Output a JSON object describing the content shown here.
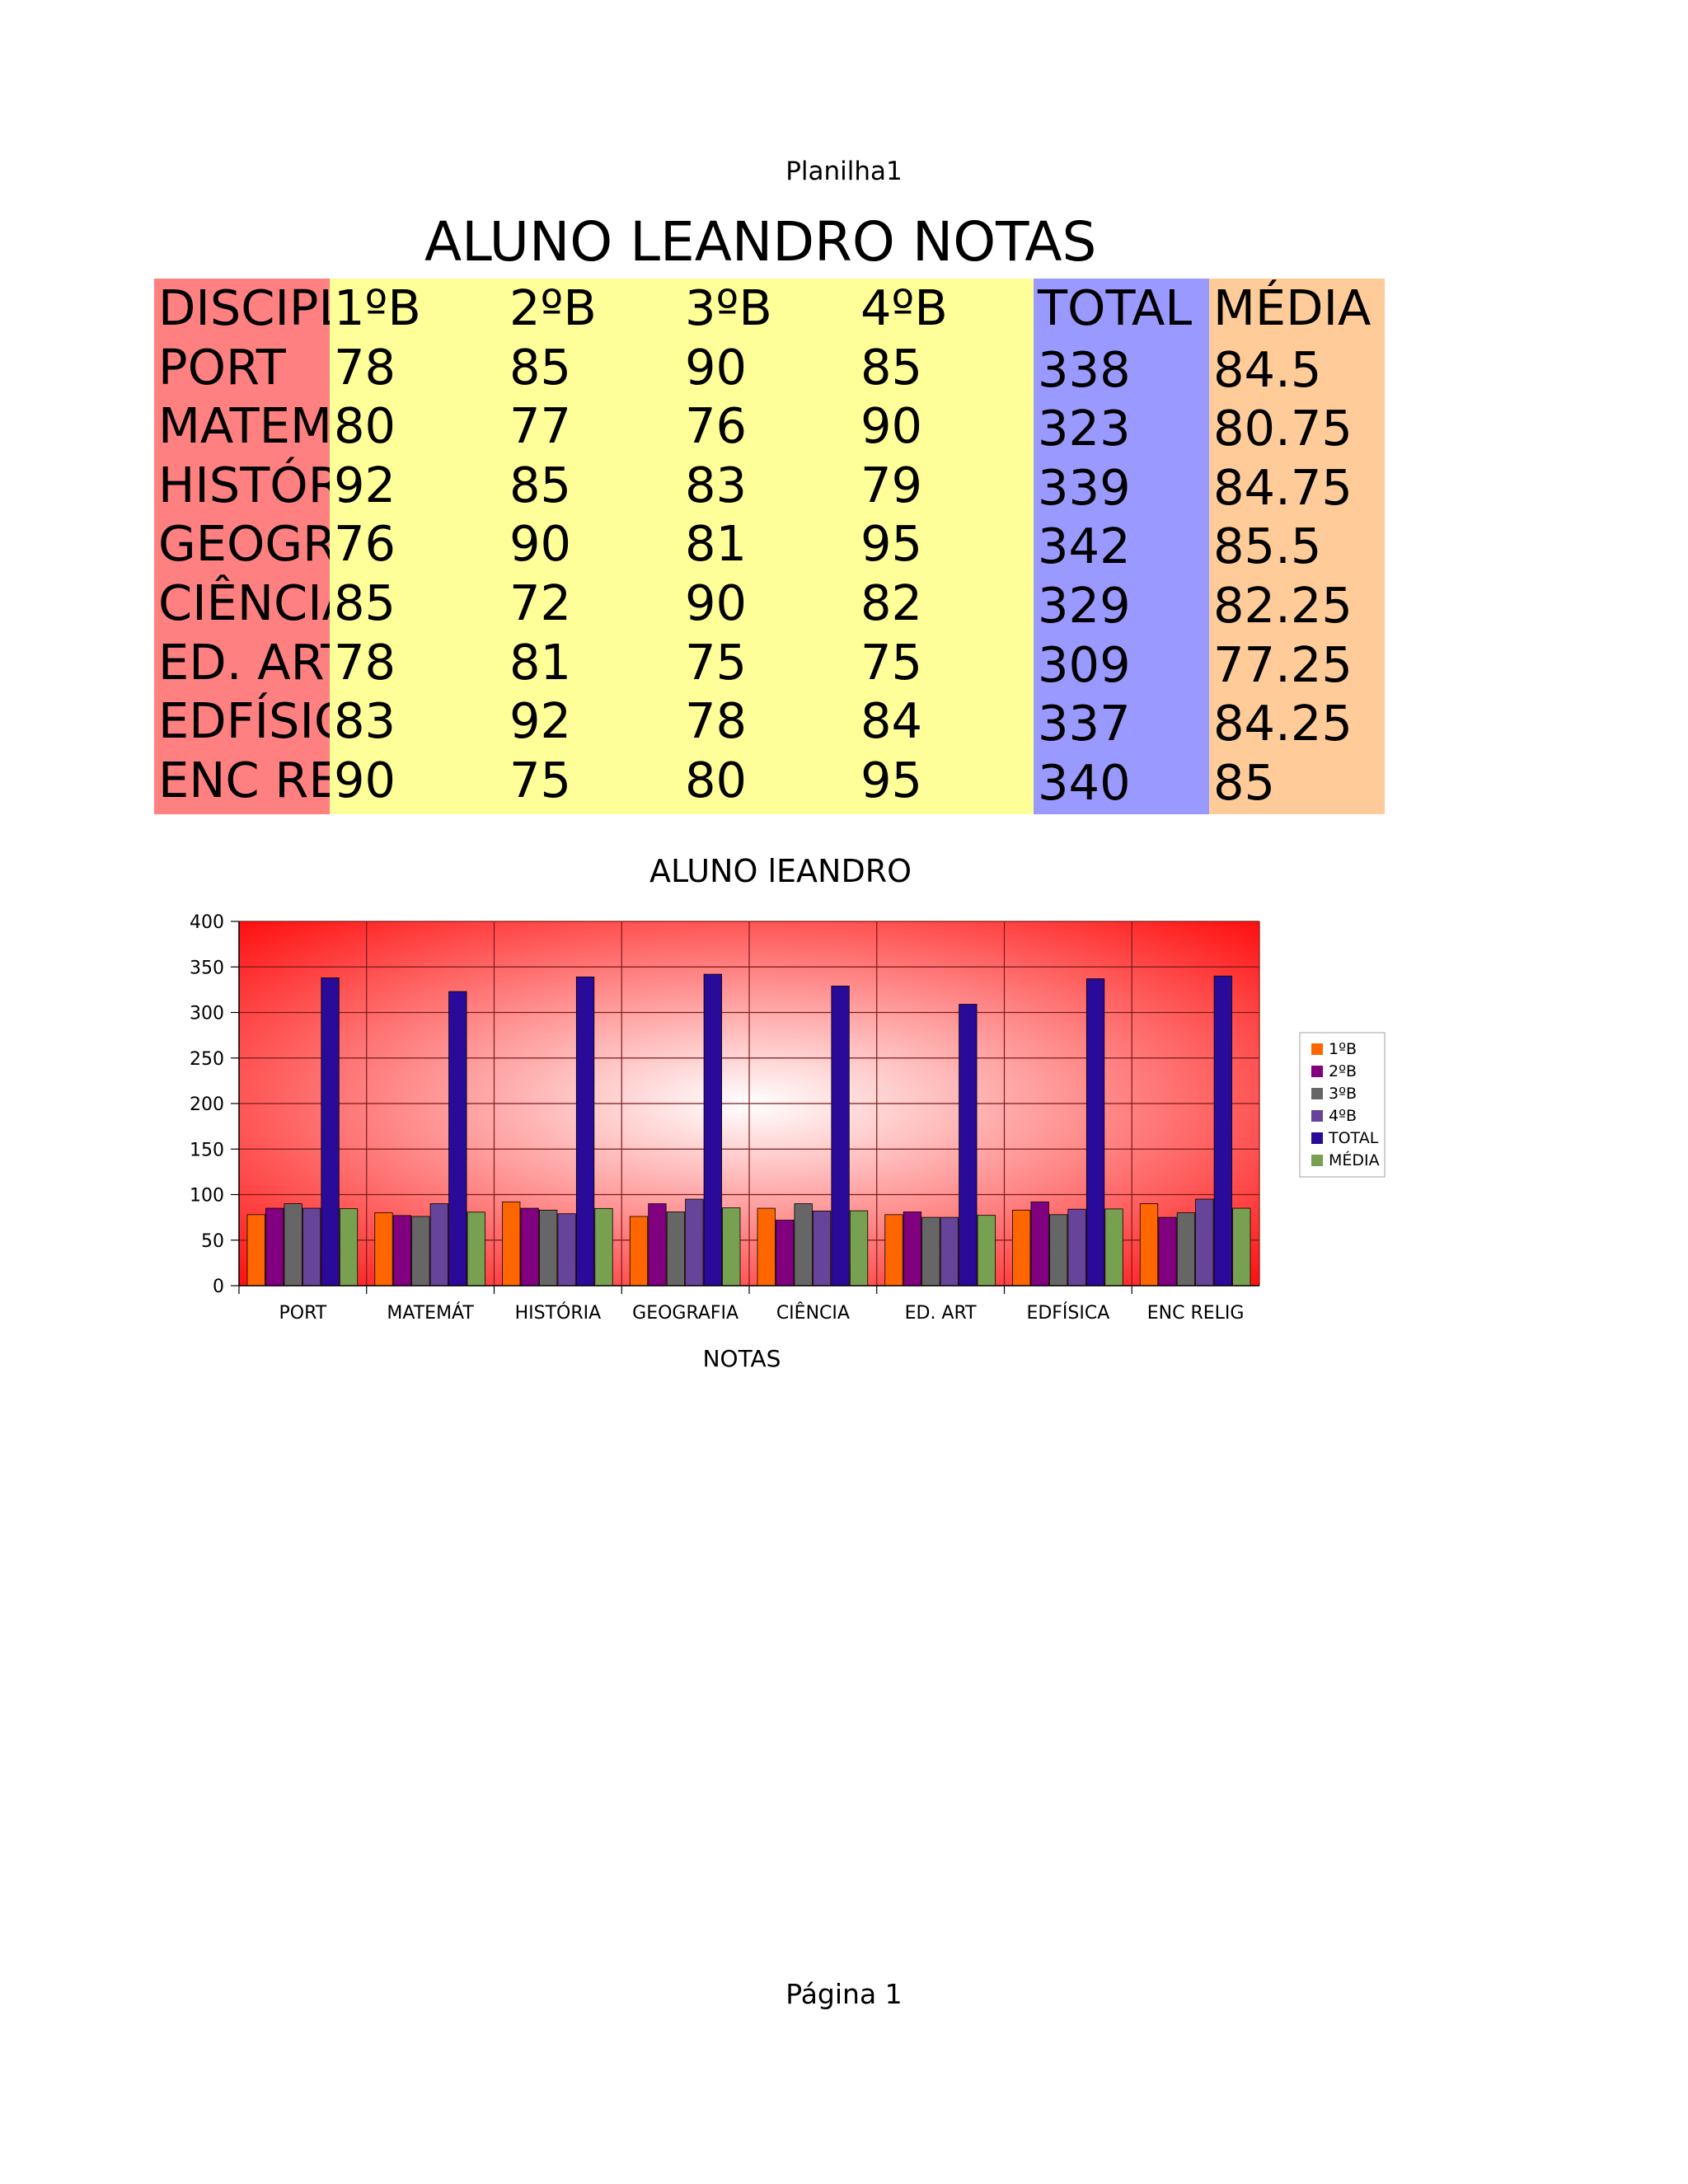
{
  "page": {
    "header": "Planilha1",
    "footer": "Página 1"
  },
  "title": "ALUNO LEANDRO NOTAS",
  "table": {
    "headers": [
      "DISCIPLINA",
      "1ºB",
      "2ºB",
      "3ºB",
      "4ºB",
      "TOTAL",
      "MÉDIA"
    ],
    "rows": [
      [
        "PORT",
        "78",
        "85",
        "90",
        "85",
        "338",
        "84.5"
      ],
      [
        "MATEMÁT",
        "80",
        "77",
        "76",
        "90",
        "323",
        "80.75"
      ],
      [
        "HISTÓRIA",
        "92",
        "85",
        "83",
        "79",
        "339",
        "84.75"
      ],
      [
        "GEOGRAFIA",
        "76",
        "90",
        "81",
        "95",
        "342",
        "85.5"
      ],
      [
        "CIÊNCIA",
        "85",
        "72",
        "90",
        "82",
        "329",
        "82.25"
      ],
      [
        "ED. ART",
        "78",
        "81",
        "75",
        "75",
        "309",
        "77.25"
      ],
      [
        "EDFÍSICA",
        "83",
        "92",
        "78",
        "84",
        "337",
        "84.25"
      ],
      [
        "ENC RELIG",
        "90",
        "75",
        "80",
        "95",
        "340",
        "85"
      ]
    ]
  },
  "chart_data": {
    "type": "bar",
    "title": "ALUNO lEANDRO",
    "xlabel": "NOTAS",
    "ylabel": "",
    "ylim": [
      0,
      400
    ],
    "yticks": [
      0,
      50,
      100,
      150,
      200,
      250,
      300,
      350,
      400
    ],
    "grid": true,
    "legend": "right",
    "categories": [
      "PORT",
      "MATEMÁT",
      "HISTÓRIA",
      "GEOGRAFIA",
      "CIÊNCIA",
      "ED. ART",
      "EDFÍSICA",
      "ENC RELIG"
    ],
    "series": [
      {
        "name": "1ºB",
        "color": "#ff6600",
        "values": [
          78,
          80,
          92,
          76,
          85,
          78,
          83,
          90
        ]
      },
      {
        "name": "2ºB",
        "color": "#800080",
        "values": [
          85,
          77,
          85,
          90,
          72,
          81,
          92,
          75
        ]
      },
      {
        "name": "3ºB",
        "color": "#666666",
        "values": [
          90,
          76,
          83,
          81,
          90,
          75,
          78,
          80
        ]
      },
      {
        "name": "4ºB",
        "color": "#664499",
        "values": [
          85,
          90,
          79,
          95,
          82,
          75,
          84,
          95
        ]
      },
      {
        "name": "TOTAL",
        "color": "#2a0a99",
        "values": [
          338,
          323,
          339,
          342,
          329,
          309,
          337,
          340
        ]
      },
      {
        "name": "MÉDIA",
        "color": "#77a050",
        "values": [
          84.5,
          80.75,
          84.75,
          85.5,
          82.25,
          77.25,
          84.25,
          85
        ]
      }
    ],
    "background": {
      "center": "#ffffff",
      "edge": "#ff0000"
    }
  }
}
